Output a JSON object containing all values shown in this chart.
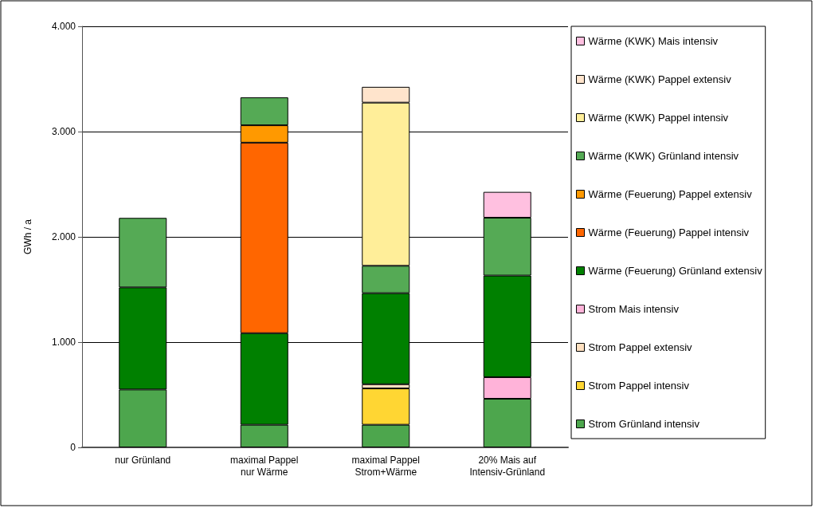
{
  "chart_data": {
    "type": "bar",
    "stacked": true,
    "ylabel": "GWh / a",
    "categories": [
      "nur Grünland",
      "maximal Pappel\nnur Wärme",
      "maximal Pappel\nStrom+Wärme",
      "20% Mais auf\nIntensiv-Grünland"
    ],
    "ylim": [
      0,
      4000
    ],
    "yticks": [
      0,
      {
        "value": 1000,
        "label": "1.000"
      },
      {
        "value": 2000,
        "label": "2.000"
      },
      {
        "value": 3000,
        "label": "3.000"
      },
      {
        "value": 4000,
        "label": "4.000"
      }
    ],
    "grid": "y",
    "legend": "right",
    "series": [
      {
        "name": "Strom Grünland intensiv",
        "color": "#4da64d",
        "values": [
          550,
          215,
          215,
          462
        ]
      },
      {
        "name": "Strom Pappel intensiv",
        "color": "#ffd633",
        "values": [
          0,
          0,
          345,
          0
        ]
      },
      {
        "name": "Strom Pappel extensiv",
        "color": "#ffe0c0",
        "values": [
          0,
          0,
          40,
          0
        ]
      },
      {
        "name": "Strom Mais intensiv",
        "color": "#ffb3d9",
        "values": [
          0,
          0,
          0,
          205
        ]
      },
      {
        "name": "Wärme (Feuerung) Grünland extensiv",
        "color": "#008000",
        "values": [
          970,
          870,
          865,
          965
        ]
      },
      {
        "name": "Wärme (Feuerung) Pappel intensiv",
        "color": "#ff6600",
        "values": [
          0,
          1810,
          0,
          0
        ]
      },
      {
        "name": "Wärme (Feuerung) Pappel extensiv",
        "color": "#ff9900",
        "values": [
          0,
          165,
          0,
          0
        ]
      },
      {
        "name": "Wärme (KWK) Grünland intensiv",
        "color": "#55aa55",
        "values": [
          660,
          265,
          260,
          550
        ]
      },
      {
        "name": "Wärme (KWK) Pappel intensiv",
        "color": "#ffee99",
        "values": [
          0,
          0,
          1550,
          0
        ]
      },
      {
        "name": "Wärme (KWK) Pappel extensiv",
        "color": "#ffe4cc",
        "values": [
          0,
          0,
          150,
          0
        ]
      },
      {
        "name": "Wärme (KWK) Mais intensiv",
        "color": "#ffc0e0",
        "values": [
          0,
          0,
          0,
          245
        ]
      }
    ]
  }
}
